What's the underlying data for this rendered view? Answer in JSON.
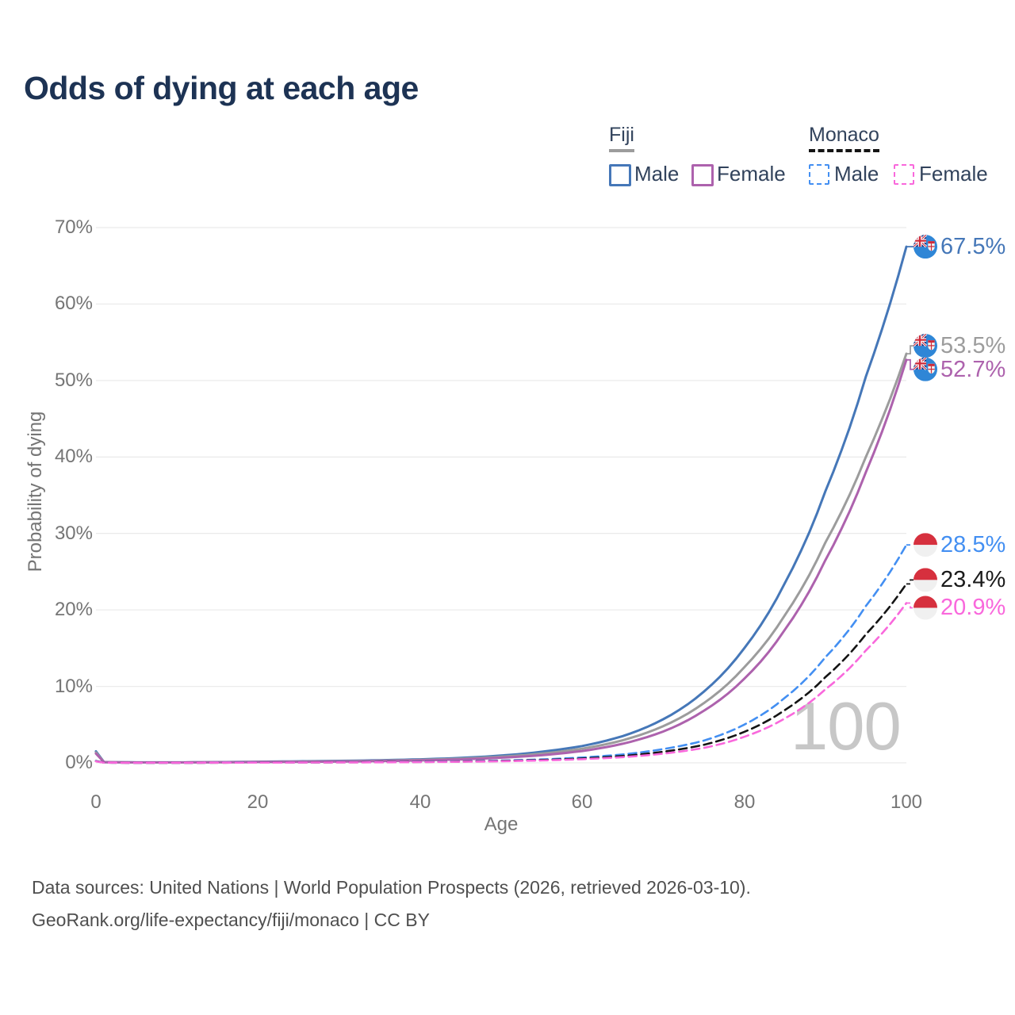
{
  "title": "Odds of dying at each age",
  "legend": {
    "groups": [
      {
        "label": "Fiji",
        "line_style": "solid",
        "underline_color": "#9c9c9c",
        "items": [
          {
            "label": "Male",
            "color": "#4577b8"
          },
          {
            "label": "Female",
            "color": "#ad62ad"
          }
        ]
      },
      {
        "label": "Monaco",
        "line_style": "dashed",
        "underline_color": "#141414",
        "items": [
          {
            "label": "Male",
            "color": "#438ff2"
          },
          {
            "label": "Female",
            "color": "#f968dc"
          }
        ]
      }
    ]
  },
  "axes": {
    "y_label": "Probability of dying",
    "x_label": "Age",
    "y_tick_labels": [
      "0%",
      "10%",
      "20%",
      "30%",
      "40%",
      "50%",
      "60%",
      "70%"
    ],
    "x_tick_labels": [
      "0",
      "20",
      "40",
      "60",
      "80",
      "100"
    ],
    "y_max_pct": 70,
    "x_max_age": 100,
    "grid": "horizontal"
  },
  "watermark": "100",
  "footer": {
    "line1": "Data sources: United Nations | World Population Prospects (2026, retrieved 2026-03-10).",
    "line2": "GeoRank.org/life-expectancy/fiji/monaco | CC BY"
  },
  "chart_data": {
    "type": "line",
    "title": "Odds of dying at each age",
    "xlabel": "Age",
    "ylabel": "Probability of dying",
    "x_range": [
      0,
      100
    ],
    "y_range_pct": [
      0,
      70
    ],
    "legend_position": "top-right",
    "x": [
      0,
      1,
      5,
      10,
      15,
      20,
      25,
      30,
      35,
      40,
      45,
      50,
      55,
      60,
      65,
      70,
      75,
      80,
      85,
      90,
      95,
      100
    ],
    "series": [
      {
        "name": "Fiji Male",
        "country": "Fiji",
        "sex": "Male",
        "color": "#4577b8",
        "dashed": false,
        "end_label": "67.5%",
        "label_color": "#4577b8",
        "values_pct": [
          1.5,
          0.1,
          0.06,
          0.06,
          0.1,
          0.15,
          0.2,
          0.26,
          0.34,
          0.46,
          0.64,
          0.95,
          1.45,
          2.2,
          3.5,
          5.7,
          9.3,
          15.0,
          23.5,
          35.5,
          50.5,
          67.5
        ]
      },
      {
        "name": "Fiji Both sexes",
        "country": "Fiji",
        "sex": "Both",
        "color": "#9c9c9c",
        "dashed": false,
        "end_label": "53.5%",
        "label_color": "#9c9c9c",
        "values_pct": [
          1.35,
          0.09,
          0.05,
          0.05,
          0.08,
          0.12,
          0.16,
          0.21,
          0.28,
          0.39,
          0.54,
          0.8,
          1.2,
          1.85,
          2.95,
          4.8,
          7.8,
          12.5,
          19.3,
          28.8,
          40.0,
          53.5
        ]
      },
      {
        "name": "Fiji Female",
        "country": "Fiji",
        "sex": "Female",
        "color": "#ad62ad",
        "dashed": false,
        "end_label": "52.7%",
        "label_color": "#ad62ad",
        "values_pct": [
          1.2,
          0.08,
          0.05,
          0.05,
          0.07,
          0.1,
          0.13,
          0.17,
          0.23,
          0.32,
          0.45,
          0.67,
          1.0,
          1.55,
          2.5,
          4.1,
          6.8,
          11.0,
          17.4,
          26.5,
          38.0,
          52.7
        ]
      },
      {
        "name": "Monaco Male",
        "country": "Monaco",
        "sex": "Male",
        "color": "#438ff2",
        "dashed": true,
        "end_label": "28.5%",
        "label_color": "#438ff2",
        "values_pct": [
          0.25,
          0.03,
          0.01,
          0.01,
          0.03,
          0.05,
          0.06,
          0.08,
          0.1,
          0.14,
          0.2,
          0.3,
          0.45,
          0.7,
          1.1,
          1.8,
          2.9,
          5.0,
          8.5,
          13.8,
          20.5,
          28.5
        ]
      },
      {
        "name": "Monaco Both sexes",
        "country": "Monaco",
        "sex": "Both",
        "color": "#141414",
        "dashed": true,
        "end_label": "23.4%",
        "label_color": "#1a1a1a",
        "values_pct": [
          0.22,
          0.03,
          0.01,
          0.01,
          0.02,
          0.04,
          0.05,
          0.07,
          0.09,
          0.12,
          0.17,
          0.25,
          0.37,
          0.57,
          0.9,
          1.45,
          2.35,
          4.05,
          6.9,
          11.2,
          16.8,
          23.4
        ]
      },
      {
        "name": "Monaco Female",
        "country": "Monaco",
        "sex": "Female",
        "color": "#f968dc",
        "dashed": true,
        "end_label": "20.9%",
        "label_color": "#f968dc",
        "values_pct": [
          0.2,
          0.02,
          0.01,
          0.01,
          0.02,
          0.03,
          0.04,
          0.06,
          0.07,
          0.1,
          0.14,
          0.21,
          0.31,
          0.48,
          0.75,
          1.2,
          1.95,
          3.4,
          5.8,
          9.6,
          14.7,
          20.9
        ]
      }
    ]
  }
}
